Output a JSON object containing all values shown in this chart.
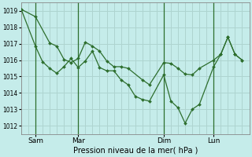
{
  "xlabel": "Pression niveau de la mer( hPa )",
  "bg_color": "#c5ecea",
  "grid_color": "#aed4d0",
  "line_color": "#2d6e2d",
  "ylim": [
    1011.5,
    1019.5
  ],
  "yticks": [
    1012,
    1013,
    1014,
    1015,
    1016,
    1017,
    1018,
    1019
  ],
  "xtick_labels": [
    "Sam",
    "Mar",
    "Dim",
    "Lun"
  ],
  "xtick_positions": [
    2,
    8,
    20,
    27
  ],
  "xlim": [
    0,
    32
  ],
  "vline_positions": [
    2,
    8,
    20,
    27
  ],
  "line1_x": [
    0,
    2,
    4,
    5,
    6,
    7,
    8,
    9,
    10,
    11,
    12,
    13,
    14,
    15,
    17,
    18,
    20,
    21,
    22,
    23,
    24,
    25,
    27,
    28,
    29,
    30,
    31
  ],
  "line1_y": [
    1019.1,
    1018.65,
    1017.05,
    1016.85,
    1016.05,
    1015.85,
    1016.1,
    1017.1,
    1016.85,
    1016.55,
    1015.95,
    1015.6,
    1015.6,
    1015.5,
    1014.8,
    1014.5,
    1015.85,
    1015.8,
    1015.5,
    1015.15,
    1015.1,
    1015.5,
    1016.0,
    1016.35,
    1017.4,
    1016.35,
    1016.0
  ],
  "line2_x": [
    0,
    2,
    3,
    4,
    5,
    6,
    7,
    8,
    9,
    10,
    11,
    12,
    13,
    14,
    15,
    16,
    17,
    18,
    20,
    21,
    22,
    23,
    24,
    25,
    27,
    28,
    29,
    30,
    31
  ],
  "line2_y": [
    1019.1,
    1016.85,
    1015.9,
    1015.5,
    1015.2,
    1015.6,
    1016.1,
    1015.55,
    1015.95,
    1016.55,
    1015.55,
    1015.35,
    1015.35,
    1014.8,
    1014.5,
    1013.8,
    1013.6,
    1013.5,
    1015.1,
    1013.5,
    1013.1,
    1012.15,
    1013.0,
    1013.3,
    1015.6,
    1016.35,
    1017.4,
    1016.35,
    1016.0
  ]
}
